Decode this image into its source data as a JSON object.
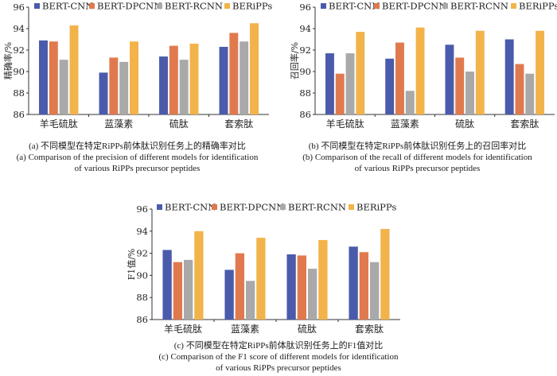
{
  "colors": {
    "BERT-CNN": "#4a5bab",
    "BERT-DPCNN": "#e07a4e",
    "BERT-RCNN": "#a9a9a9",
    "BERiPPs": "#f2b34a",
    "axis": "#333333"
  },
  "chart_data": [
    {
      "type": "bar",
      "panel": "a",
      "ylabel": "精确率/%",
      "ylim": [
        86,
        96
      ],
      "yticks": [
        86,
        88,
        90,
        92,
        94,
        96
      ],
      "categories": [
        "羊毛硫肽",
        "蓝藻素",
        "硫肽",
        "套索肽"
      ],
      "series": [
        {
          "name": "BERT-CNN",
          "values": [
            92.9,
            89.9,
            91.4,
            92.3
          ]
        },
        {
          "name": "BERT-DPCNN",
          "values": [
            92.8,
            91.3,
            92.4,
            93.6
          ]
        },
        {
          "name": "BERT-RCNN",
          "values": [
            91.1,
            90.9,
            91.1,
            92.8
          ]
        },
        {
          "name": "BERiPPs",
          "values": [
            94.3,
            92.8,
            92.6,
            94.5
          ]
        }
      ],
      "caption_cn": "(a) 不同模型在特定RiPPs前体肽识别任务上的精确率对比",
      "caption_en": [
        "(a) Comparison of the precision of different models for identification",
        "of various RiPPs precursor peptides"
      ]
    },
    {
      "type": "bar",
      "panel": "b",
      "ylabel": "召回率/%",
      "ylim": [
        86,
        96
      ],
      "yticks": [
        86,
        88,
        90,
        92,
        94,
        96
      ],
      "categories": [
        "羊毛硫肽",
        "蓝藻素",
        "硫肽",
        "套索肽"
      ],
      "series": [
        {
          "name": "BERT-CNN",
          "values": [
            91.7,
            91.2,
            92.5,
            93.0
          ]
        },
        {
          "name": "BERT-DPCNN",
          "values": [
            89.8,
            92.7,
            91.3,
            90.7
          ]
        },
        {
          "name": "BERT-RCNN",
          "values": [
            91.7,
            88.2,
            90.0,
            89.8
          ]
        },
        {
          "name": "BERiPPs",
          "values": [
            93.7,
            94.1,
            93.8,
            93.8
          ]
        }
      ],
      "caption_cn": "(b) 不同模型在特定RiPPs前体肽识别任务上的召回率对比",
      "caption_en": [
        "(b) Comparison of the recall of different models for identification",
        "of various RiPPs precursor peptides"
      ]
    },
    {
      "type": "bar",
      "panel": "c",
      "ylabel": "F1值/%",
      "ylim": [
        86,
        96
      ],
      "yticks": [
        86,
        88,
        90,
        92,
        94,
        96
      ],
      "categories": [
        "羊毛硫肽",
        "蓝藻素",
        "硫肽",
        "套索肽"
      ],
      "series": [
        {
          "name": "BERT-CNN",
          "values": [
            92.3,
            90.5,
            91.9,
            92.6
          ]
        },
        {
          "name": "BERT-DPCNN",
          "values": [
            91.2,
            92.0,
            91.8,
            92.1
          ]
        },
        {
          "name": "BERT-RCNN",
          "values": [
            91.4,
            89.5,
            90.6,
            91.2
          ]
        },
        {
          "name": "BERiPPs",
          "values": [
            94.0,
            93.4,
            93.2,
            94.2
          ]
        }
      ],
      "caption_cn": "(c) 不同模型在特定RiPPs前体肽识别任务上的F1值对比",
      "caption_en": [
        "(c) Comparison of the F1 score of different models for identification",
        "of various RiPPs precursor peptides"
      ]
    }
  ]
}
